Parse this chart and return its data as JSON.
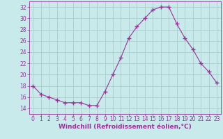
{
  "x": [
    0,
    1,
    2,
    3,
    4,
    5,
    6,
    7,
    8,
    9,
    10,
    11,
    12,
    13,
    14,
    15,
    16,
    17,
    18,
    19,
    20,
    21,
    22,
    23
  ],
  "y": [
    18,
    16.5,
    16,
    15.5,
    15,
    15,
    15,
    14.5,
    14.5,
    17,
    20,
    23,
    26.5,
    28.5,
    30,
    31.5,
    32,
    32,
    29,
    26.5,
    24.5,
    22,
    20.5,
    18.5
  ],
  "line_color": "#993399",
  "marker": "+",
  "marker_size": 4,
  "bg_color": "#c8eaea",
  "grid_color": "#aacccc",
  "xlabel": "Windchill (Refroidissement éolien,°C)",
  "xlabel_color": "#993399",
  "tick_color": "#993399",
  "spine_color": "#993399",
  "ylim": [
    13,
    33
  ],
  "yticks": [
    14,
    16,
    18,
    20,
    22,
    24,
    26,
    28,
    30,
    32
  ],
  "xticks": [
    0,
    1,
    2,
    3,
    4,
    5,
    6,
    7,
    8,
    9,
    10,
    11,
    12,
    13,
    14,
    15,
    16,
    17,
    18,
    19,
    20,
    21,
    22,
    23
  ],
  "tick_fontsize": 5.5,
  "xlabel_fontsize": 6.5
}
